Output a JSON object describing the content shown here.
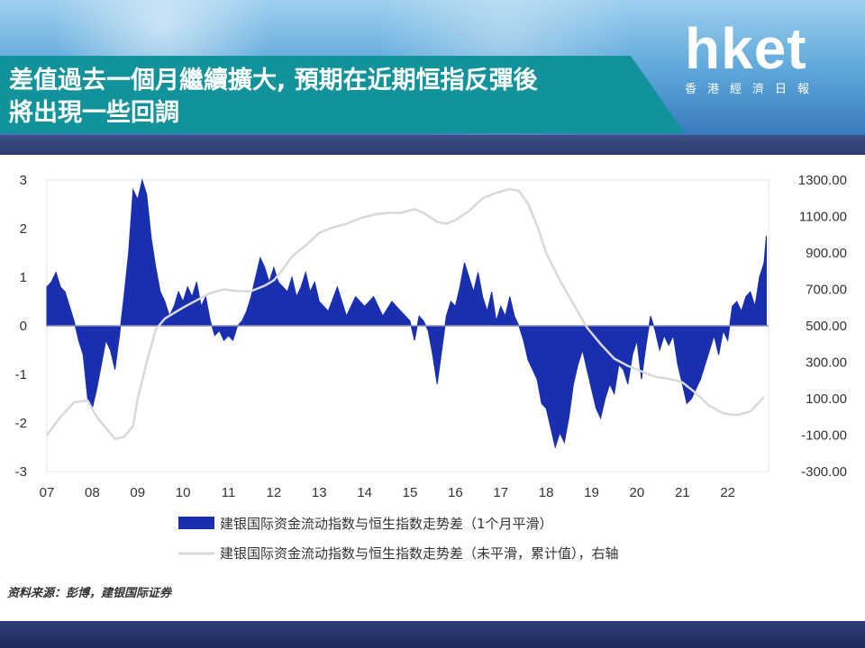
{
  "header": {
    "title_line1": "差值過去一個月繼續擴大, 預期在近期恒指反彈後",
    "title_line2": "將出現一些回調",
    "logo_main": "hket",
    "logo_sub": "香港經濟日報"
  },
  "source": "资料来源：彭博，建银国际证券",
  "colors": {
    "bar": "#1a2fb0",
    "line": "#d9d9d9",
    "title_bg": "#12939b"
  },
  "chart_data": {
    "type": "area",
    "x_ticks": [
      "07",
      "08",
      "09",
      "10",
      "11",
      "12",
      "13",
      "14",
      "15",
      "16",
      "17",
      "18",
      "19",
      "20",
      "21",
      "22"
    ],
    "ylim_left": [
      -3,
      3
    ],
    "yticks_left": [
      "3",
      "2",
      "1",
      "0",
      "-1",
      "-2",
      "-3"
    ],
    "ylim_right": [
      -300,
      1300
    ],
    "yticks_right": [
      "1300.00",
      "1100.00",
      "900.00",
      "700.00",
      "500.00",
      "300.00",
      "100.00",
      "-100.00",
      "-300.00"
    ],
    "legend": "bottom",
    "series": [
      {
        "name": "建银国际资金流动指数与恒生指数走势差（1个月平滑）",
        "axis": "left",
        "style": "filled",
        "x": [
          2007.0,
          2007.1,
          2007.2,
          2007.3,
          2007.4,
          2007.5,
          2007.6,
          2007.7,
          2007.8,
          2007.9,
          2008.0,
          2008.1,
          2008.2,
          2008.3,
          2008.4,
          2008.5,
          2008.6,
          2008.7,
          2008.8,
          2008.9,
          2009.0,
          2009.1,
          2009.2,
          2009.3,
          2009.4,
          2009.5,
          2009.6,
          2009.7,
          2009.8,
          2009.9,
          2010.0,
          2010.1,
          2010.2,
          2010.3,
          2010.4,
          2010.5,
          2010.6,
          2010.7,
          2010.8,
          2010.9,
          2011.0,
          2011.1,
          2011.2,
          2011.3,
          2011.4,
          2011.5,
          2011.6,
          2011.7,
          2011.8,
          2011.9,
          2012.0,
          2012.1,
          2012.2,
          2012.3,
          2012.4,
          2012.5,
          2012.6,
          2012.7,
          2012.8,
          2012.9,
          2013.0,
          2013.2,
          2013.4,
          2013.6,
          2013.8,
          2014.0,
          2014.2,
          2014.4,
          2014.6,
          2014.8,
          2015.0,
          2015.1,
          2015.2,
          2015.3,
          2015.4,
          2015.5,
          2015.6,
          2015.7,
          2015.8,
          2015.9,
          2016.0,
          2016.1,
          2016.2,
          2016.3,
          2016.4,
          2016.5,
          2016.6,
          2016.7,
          2016.8,
          2016.9,
          2017.0,
          2017.1,
          2017.2,
          2017.3,
          2017.4,
          2017.5,
          2017.6,
          2017.7,
          2017.8,
          2017.9,
          2018.0,
          2018.1,
          2018.2,
          2018.3,
          2018.4,
          2018.5,
          2018.6,
          2018.7,
          2018.8,
          2018.9,
          2019.0,
          2019.1,
          2019.2,
          2019.3,
          2019.4,
          2019.5,
          2019.6,
          2019.7,
          2019.8,
          2019.9,
          2020.0,
          2020.1,
          2020.2,
          2020.3,
          2020.4,
          2020.5,
          2020.6,
          2020.7,
          2020.8,
          2020.9,
          2021.0,
          2021.1,
          2021.2,
          2021.3,
          2021.4,
          2021.5,
          2021.6,
          2021.7,
          2021.8,
          2021.9,
          2022.0,
          2022.1,
          2022.2,
          2022.3,
          2022.4,
          2022.5,
          2022.6,
          2022.7,
          2022.8,
          2022.85
        ],
        "values": [
          0.8,
          0.9,
          1.1,
          0.8,
          0.7,
          0.4,
          0.1,
          -0.3,
          -0.6,
          -1.5,
          -1.7,
          -1.3,
          -0.8,
          -0.3,
          -0.5,
          -0.9,
          -0.2,
          0.6,
          1.5,
          2.8,
          2.6,
          3.0,
          2.7,
          1.8,
          1.2,
          0.7,
          0.5,
          0.2,
          0.4,
          0.7,
          0.5,
          0.8,
          0.6,
          0.9,
          0.4,
          0.6,
          0.1,
          -0.2,
          -0.1,
          -0.3,
          -0.2,
          -0.3,
          0.0,
          0.1,
          0.3,
          0.6,
          1.0,
          1.4,
          1.2,
          0.9,
          1.2,
          0.9,
          0.8,
          0.7,
          1.0,
          0.6,
          0.8,
          1.1,
          0.7,
          0.9,
          0.5,
          0.3,
          0.8,
          0.2,
          0.6,
          0.4,
          0.6,
          0.2,
          0.5,
          0.3,
          0.1,
          -0.3,
          0.2,
          0.1,
          -0.1,
          -0.6,
          -1.2,
          -0.5,
          0.2,
          0.5,
          0.4,
          0.8,
          1.3,
          1.0,
          0.7,
          1.1,
          0.6,
          0.3,
          0.7,
          0.1,
          0.4,
          0.2,
          0.6,
          0.2,
          0.0,
          -0.3,
          -0.7,
          -0.9,
          -1.1,
          -1.6,
          -1.7,
          -2.1,
          -2.5,
          -2.2,
          -2.4,
          -1.9,
          -1.2,
          -0.8,
          -0.5,
          -0.9,
          -1.3,
          -1.7,
          -1.9,
          -1.5,
          -1.2,
          -1.4,
          -0.8,
          -0.9,
          -1.2,
          -0.6,
          -0.3,
          -1.1,
          -0.4,
          0.2,
          -0.1,
          -0.5,
          -0.2,
          -0.4,
          -0.2,
          -0.8,
          -1.2,
          -1.6,
          -1.5,
          -1.3,
          -1.1,
          -0.8,
          -0.5,
          -0.2,
          -0.6,
          -0.1,
          -0.3,
          0.4,
          0.5,
          0.3,
          0.6,
          0.7,
          0.4,
          1.0,
          1.3,
          1.85
        ]
      },
      {
        "name": "建银国际资金流动指数与恒生指数走势差（未平滑，累计值），右轴",
        "axis": "right",
        "style": "line",
        "x": [
          2007.0,
          2007.3,
          2007.6,
          2007.9,
          2008.1,
          2008.3,
          2008.5,
          2008.7,
          2008.9,
          2009.0,
          2009.2,
          2009.4,
          2009.6,
          2009.8,
          2010.0,
          2010.3,
          2010.6,
          2010.9,
          2011.2,
          2011.5,
          2011.8,
          2012.0,
          2012.2,
          2012.4,
          2012.7,
          2013.0,
          2013.3,
          2013.6,
          2013.9,
          2014.2,
          2014.5,
          2014.8,
          2015.1,
          2015.3,
          2015.6,
          2015.8,
          2016.0,
          2016.3,
          2016.6,
          2016.9,
          2017.2,
          2017.4,
          2017.6,
          2017.8,
          2018.0,
          2018.3,
          2018.6,
          2018.9,
          2019.2,
          2019.5,
          2019.8,
          2020.1,
          2020.4,
          2020.7,
          2021.0,
          2021.3,
          2021.6,
          2021.9,
          2022.2,
          2022.5,
          2022.8
        ],
        "values": [
          -100,
          0,
          80,
          90,
          0,
          -60,
          -120,
          -110,
          -50,
          100,
          300,
          480,
          540,
          570,
          600,
          640,
          680,
          700,
          690,
          690,
          720,
          750,
          810,
          880,
          940,
          1010,
          1040,
          1060,
          1090,
          1110,
          1120,
          1120,
          1140,
          1120,
          1070,
          1060,
          1080,
          1130,
          1200,
          1230,
          1250,
          1240,
          1170,
          1050,
          900,
          750,
          620,
          490,
          400,
          320,
          280,
          250,
          220,
          210,
          190,
          130,
          60,
          20,
          10,
          30,
          110
        ]
      }
    ]
  }
}
